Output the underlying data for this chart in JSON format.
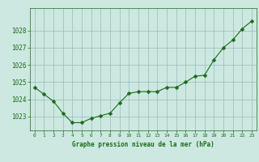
{
  "x": [
    0,
    1,
    2,
    3,
    4,
    5,
    6,
    7,
    8,
    9,
    10,
    11,
    12,
    13,
    14,
    15,
    16,
    17,
    18,
    19,
    20,
    21,
    22,
    23
  ],
  "y": [
    1024.7,
    1024.3,
    1023.9,
    1023.2,
    1022.65,
    1022.65,
    1022.9,
    1023.05,
    1023.2,
    1023.8,
    1024.35,
    1024.45,
    1024.45,
    1024.45,
    1024.7,
    1024.7,
    1025.0,
    1025.35,
    1025.4,
    1026.3,
    1027.0,
    1027.45,
    1028.1,
    1028.55
  ],
  "line_color": "#1a6b1a",
  "marker": "D",
  "marker_size": 2.5,
  "bg_color": "#cce8e0",
  "grid_color": "#99bbbb",
  "xlabel": "Graphe pression niveau de la mer (hPa)",
  "xlabel_color": "#1a6b1a",
  "tick_color": "#1a6b1a",
  "ylim": [
    1022.2,
    1029.3
  ],
  "yticks": [
    1023,
    1024,
    1025,
    1026,
    1027,
    1028
  ],
  "ytick_labels": [
    "1023",
    "1024",
    "1025",
    "1026",
    "1027",
    "1028"
  ],
  "xlim": [
    -0.5,
    23.5
  ],
  "xtick_labels": [
    "0",
    "1",
    "2",
    "3",
    "4",
    "5",
    "6",
    "7",
    "8",
    "9",
    "10",
    "11",
    "12",
    "13",
    "14",
    "15",
    "16",
    "17",
    "18",
    "19",
    "20",
    "21",
    "22",
    "23"
  ]
}
